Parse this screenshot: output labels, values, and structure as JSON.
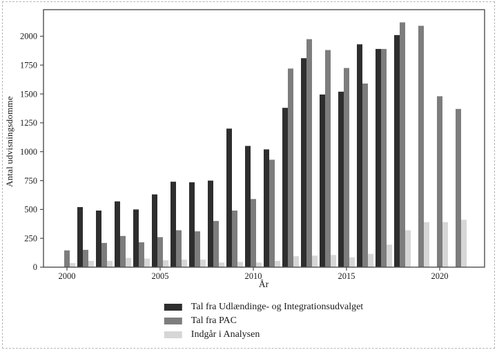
{
  "figure": {
    "ylabel": "Antal udvisningsdomme",
    "xlabel": "År"
  },
  "chart_data": {
    "type": "bar",
    "title": "",
    "xlabel": "År",
    "ylabel": "Antal udvisningsdomme",
    "categories": [
      2000,
      2001,
      2002,
      2003,
      2004,
      2005,
      2006,
      2007,
      2008,
      2009,
      2010,
      2011,
      2012,
      2013,
      2014,
      2015,
      2016,
      2017,
      2018,
      2019,
      2020,
      2021
    ],
    "series": [
      {
        "name": "Tal fra Udlændinge- og Integrationsudvalget",
        "color": "#2e2e2e",
        "values": [
          0,
          520,
          490,
          570,
          500,
          630,
          740,
          735,
          750,
          1200,
          1050,
          1020,
          1380,
          1810,
          1495,
          1520,
          1930,
          1890,
          2010,
          0,
          0,
          0
        ]
      },
      {
        "name": "Tal fra PAC",
        "color": "#7d7d7d",
        "values": [
          145,
          150,
          210,
          270,
          215,
          260,
          320,
          310,
          400,
          490,
          590,
          930,
          1720,
          1975,
          1880,
          1725,
          1590,
          1890,
          2120,
          2090,
          1480,
          1370
        ]
      },
      {
        "name": "Indgår i Analysen",
        "color": "#d6d6d6",
        "values": [
          35,
          55,
          55,
          80,
          75,
          60,
          65,
          65,
          40,
          45,
          40,
          55,
          95,
          100,
          105,
          85,
          115,
          195,
          320,
          390,
          390,
          410
        ]
      }
    ],
    "ylim": [
      0,
      2230
    ],
    "yticks": [
      0,
      250,
      500,
      750,
      1000,
      1250,
      1500,
      1750,
      2000
    ],
    "xticks": [
      2000,
      2005,
      2010,
      2015,
      2020
    ],
    "grid": false,
    "legend_position": "bottom"
  },
  "colors": {
    "axis": "#4d4d4d",
    "text": "#1a1a1a",
    "page_border": "#b5b5b5"
  }
}
